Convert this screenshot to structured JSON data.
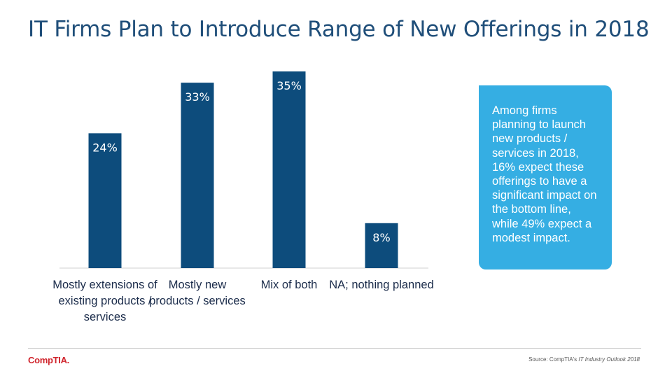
{
  "title": "IT Firms Plan to Introduce Range of New Offerings in 2018",
  "chart_data": {
    "type": "bar",
    "title": "",
    "xlabel": "",
    "ylabel": "",
    "ylim": [
      0,
      38
    ],
    "grid": false,
    "categories": [
      "Mostly extensions of existing products / services",
      "Mostly new products / services",
      "Mix of both",
      "NA; nothing planned"
    ],
    "values": [
      24,
      33,
      35,
      8
    ],
    "data_labels": [
      "24%",
      "33%",
      "35%",
      "8%"
    ],
    "bar_color": "#0d4c7c"
  },
  "callout": {
    "text": "Among firms planning to launch new products / services in 2018, 16% expect these offerings to have a significant impact on the bottom line, while 49% expect a modest impact."
  },
  "footer": {
    "logo_text": "CompTIA.",
    "source_prefix": "Source: CompTIA's ",
    "source_publication": "IT Industry Outlook 2018"
  }
}
